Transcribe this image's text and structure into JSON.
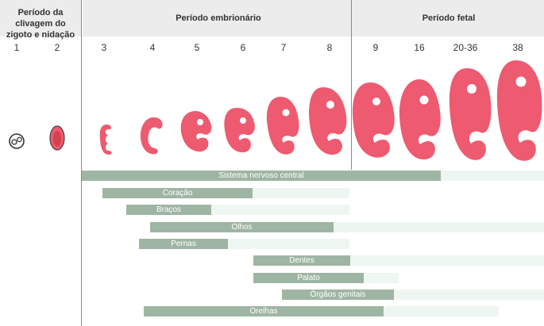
{
  "periods": {
    "clivagem": "Período da clivagem do zigoto e nidação",
    "embrionario": "Período embrionário",
    "fetal": "Período fetal"
  },
  "weeks": [
    "1",
    "2",
    "3",
    "4",
    "5",
    "6",
    "7",
    "8",
    "9",
    "16",
    "20-36",
    "38"
  ],
  "structures": [
    {
      "label": "Sistema nervoso central"
    },
    {
      "label": "Coração"
    },
    {
      "label": "Braços"
    },
    {
      "label": "Olhos"
    },
    {
      "label": "Pernas"
    },
    {
      "label": "Dentes"
    },
    {
      "label": "Palato"
    },
    {
      "label": "Órgãos genitais"
    },
    {
      "label": "Orelhas"
    }
  ],
  "colors": {
    "embryo": "#ee5a6f",
    "bar": "#9fb5a3",
    "bar_light": "#eef6f1",
    "header_band": "#ececec"
  }
}
